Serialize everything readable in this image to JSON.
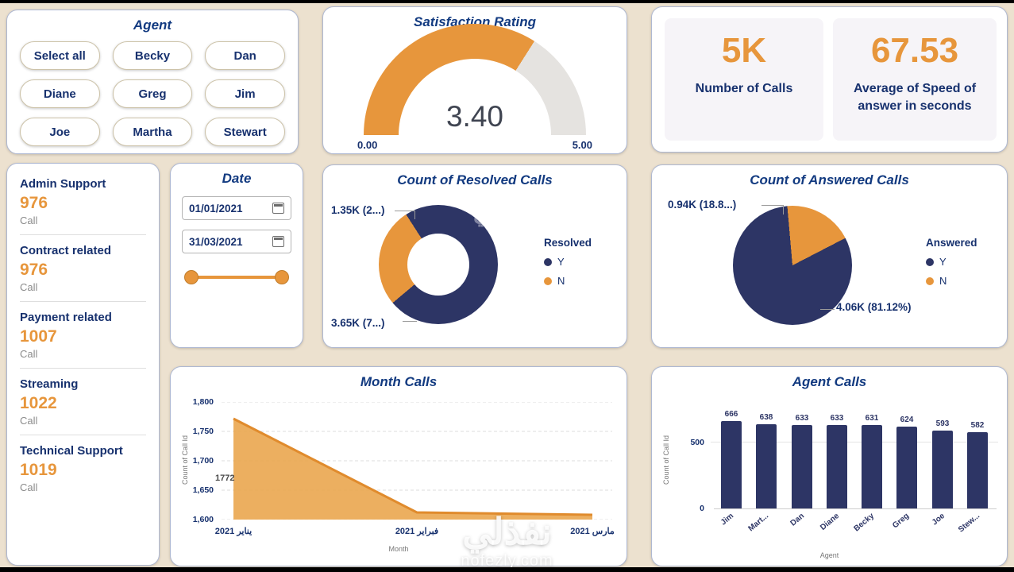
{
  "colors": {
    "accent_orange": "#e7963c",
    "navy": "#2d3565",
    "title_blue": "#123a80",
    "background": "#ece1cf"
  },
  "agent_panel": {
    "title": "Agent",
    "buttons": [
      "Select all",
      "Becky",
      "Dan",
      "Diane",
      "Greg",
      "Jim",
      "Joe",
      "Martha",
      "Stewart"
    ]
  },
  "kpi_cards": [
    {
      "value": "5K",
      "label": "Number of Calls"
    },
    {
      "value": "67.53",
      "label": "Average of Speed of answer in seconds"
    }
  ],
  "categories": [
    {
      "name": "Admin Support",
      "value": "976",
      "unit": "Call"
    },
    {
      "name": "Contract related",
      "value": "976",
      "unit": "Call"
    },
    {
      "name": "Payment related",
      "value": "1007",
      "unit": "Call"
    },
    {
      "name": "Streaming",
      "value": "1022",
      "unit": "Call"
    },
    {
      "name": "Technical Support",
      "value": "1019",
      "unit": "Call"
    }
  ],
  "date_panel": {
    "title": "Date",
    "start_date": "01/01/2021",
    "end_date": "31/03/2021"
  },
  "watermark": {
    "line1": "نفذلي",
    "line2": "nofezly.com"
  },
  "chart_data": [
    {
      "type": "gauge",
      "title": "Satisfaction Rating",
      "value": 3.4,
      "min": 0,
      "max": 5,
      "value_label": "3.40",
      "min_label": "0.00",
      "max_label": "5.00",
      "fill_color": "#e7963c",
      "track_color": "#e5e3e0"
    },
    {
      "type": "pie",
      "subtype": "donut",
      "title": "Count of Resolved Calls",
      "legend_title": "Resolved",
      "legend_position": "right",
      "labels": [
        "Y",
        "N"
      ],
      "values": [
        3650,
        1350
      ],
      "value_labels": [
        "3.65K (7...)",
        "1.35K (2...)"
      ],
      "colors": [
        "#2d3565",
        "#e7963c"
      ],
      "start_angle": 230
    },
    {
      "type": "pie",
      "title": "Count of Answered Calls",
      "legend_title": "Answered",
      "legend_position": "right",
      "labels": [
        "Y",
        "N"
      ],
      "values": [
        4060,
        940
      ],
      "value_labels": [
        "4.06K (81.12%)",
        "0.94K (18.8...)"
      ],
      "colors": [
        "#2d3565",
        "#e7963c"
      ],
      "start_angle": 355
    },
    {
      "type": "area",
      "title": "Month Calls",
      "x": [
        "2021 يناير",
        "2021 فبراير",
        "2021 مارس"
      ],
      "values": [
        1772,
        1612,
        1608
      ],
      "ylim": [
        1600,
        1800
      ],
      "yticks": [
        "1,800",
        "1,750",
        "1,700",
        "1,650",
        "1,600"
      ],
      "xlabel": "Month",
      "ylabel": "Count of Call Id",
      "point_label": "1772",
      "line_color": "#e08b2d",
      "fill_color": "#eaa64f",
      "grid": true
    },
    {
      "type": "bar",
      "title": "Agent Calls",
      "categories": [
        "Jim",
        "Mart...",
        "Dan",
        "Diane",
        "Becky",
        "Greg",
        "Joe",
        "Stew..."
      ],
      "values": [
        666,
        638,
        633,
        633,
        631,
        624,
        593,
        582
      ],
      "ymax": 700,
      "yticks": [
        "500",
        "0"
      ],
      "xlabel": "Agent",
      "ylabel": "Count of Call Id",
      "bar_color": "#2d3565",
      "grid": true
    }
  ]
}
